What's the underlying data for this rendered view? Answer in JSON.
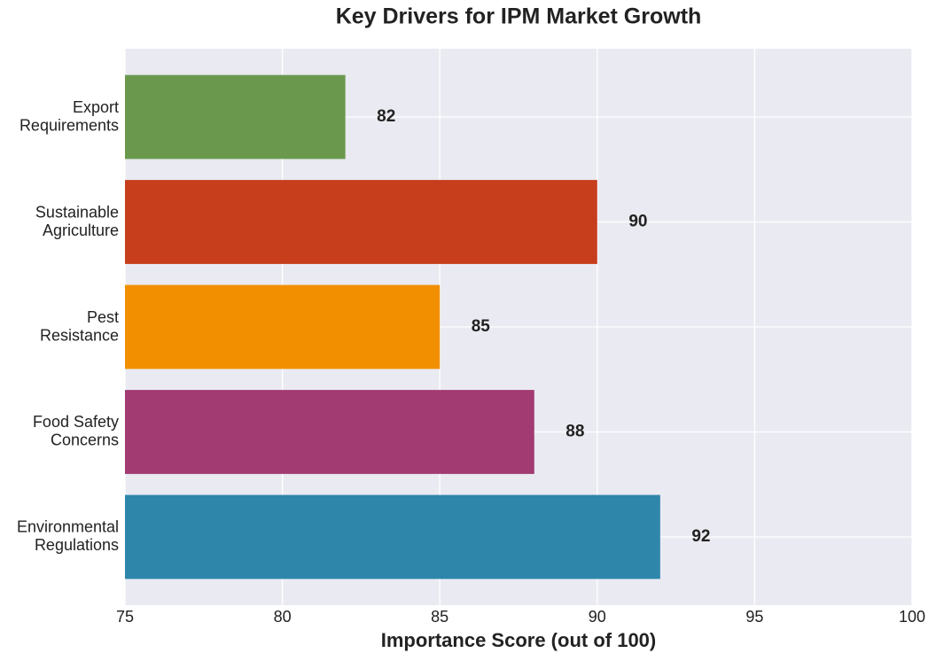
{
  "chart_data": {
    "type": "barh",
    "title": "Key Drivers for IPM Market Growth",
    "x_label": "Importance Score (out of 100)",
    "categories": [
      "Environmental\nRegulations",
      "Food Safety\nConcerns",
      "Pest\nResistance",
      "Sustainable\nAgriculture",
      "Export\nRequirements"
    ],
    "values": [
      92,
      88,
      85,
      90,
      82
    ],
    "colors": [
      "#2e86ab",
      "#a23b72",
      "#f18f01",
      "#c73e1d",
      "#6a994e"
    ],
    "xlim": [
      75,
      100
    ],
    "xticks": [
      75,
      80,
      85,
      90,
      95,
      100
    ],
    "grid": true
  }
}
